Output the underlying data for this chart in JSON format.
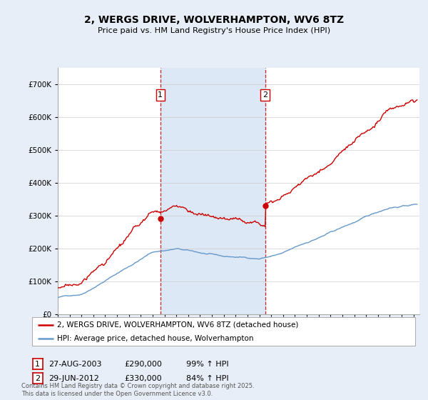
{
  "title": "2, WERGS DRIVE, WOLVERHAMPTON, WV6 8TZ",
  "subtitle": "Price paid vs. HM Land Registry's House Price Index (HPI)",
  "background_color": "#e8eef7",
  "plot_background": "#ffffff",
  "shade_color": "#dce8f5",
  "red_label": "2, WERGS DRIVE, WOLVERHAMPTON, WV6 8TZ (detached house)",
  "blue_label": "HPI: Average price, detached house, Wolverhampton",
  "purchase1_date": "27-AUG-2003",
  "purchase1_price": 290000,
  "purchase1_hpi": "99% ↑ HPI",
  "purchase2_date": "29-JUN-2012",
  "purchase2_price": 330000,
  "purchase2_hpi": "84% ↑ HPI",
  "vline1_x": 2003.65,
  "vline2_x": 2012.49,
  "ylim_min": 0,
  "ylim_max": 750000,
  "xlim_min": 1995,
  "xlim_max": 2025.5,
  "footer": "Contains HM Land Registry data © Crown copyright and database right 2025.\nThis data is licensed under the Open Government Licence v3.0.",
  "red_color": "#cc0000",
  "blue_color": "#6699cc",
  "vline_color": "#cc0000",
  "box_label_color": "#cc0000"
}
